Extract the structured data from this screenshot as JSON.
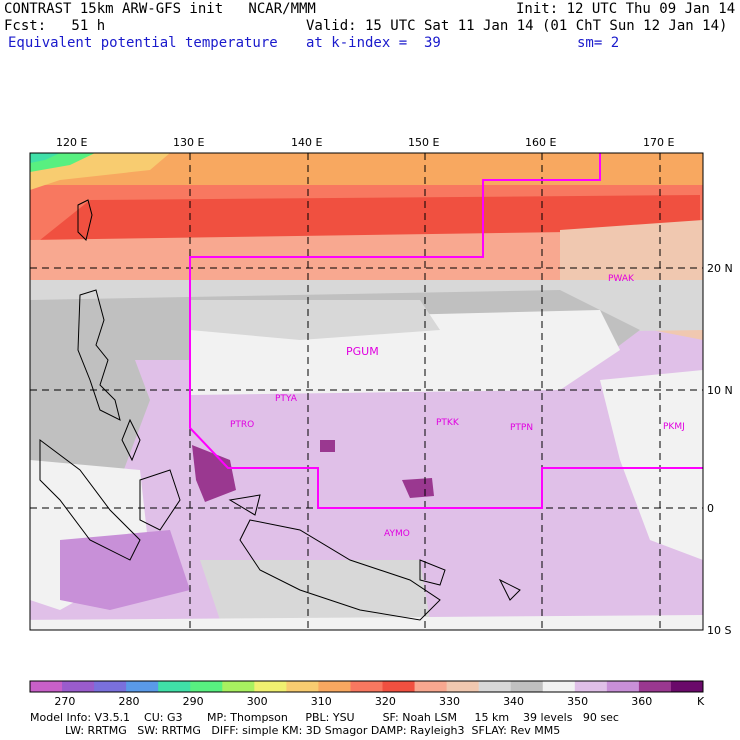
{
  "header": {
    "line1_left": "CONTRAST 15km ARW-GFS init   NCAR/MMM",
    "line1_right": "Init: 12 UTC Thu 09 Jan 14",
    "line2_left": "Fcst:   51 h",
    "line2_right": "Valid: 15 UTC Sat 11 Jan 14 (01 ChT Sun 12 Jan 14)",
    "line3_left": "Equivalent potential temperature",
    "line3_mid": "at k-index =  39",
    "line3_right": "sm= 2"
  },
  "lon_labels": [
    "120 E",
    "130 E",
    "140 E",
    "150 E",
    "160 E",
    "170 E"
  ],
  "lat_labels": [
    "20 N",
    "10 N",
    "0",
    "10 S"
  ],
  "stations": [
    "PWAK",
    "PGUM",
    "PTYA",
    "PTRO",
    "PTKK",
    "PTPN",
    "PKMJ",
    "AYMO"
  ],
  "colorbar": {
    "labels": [
      "270",
      "280",
      "290",
      "300",
      "310",
      "320",
      "330",
      "340",
      "350",
      "360"
    ],
    "unit": "K",
    "colors": [
      "#c860c8",
      "#9a5ccc",
      "#7a70dc",
      "#5a9ae8",
      "#40e0a8",
      "#58f080",
      "#a8f060",
      "#f0f070",
      "#f8cc70",
      "#f8a860",
      "#f87860",
      "#f05040",
      "#f8a890",
      "#f0c8b0",
      "#d8d8d8",
      "#c0c0c0",
      "#f2f2f2",
      "#e0c0e8",
      "#c890d8",
      "#9a3890",
      "#6a0a6a"
    ]
  },
  "footer": {
    "line1": "Model Info: V3.5.1    CU: G3       MP: Thompson     PBL: YSU        SF: Noah LSM     15 km    39 levels   90 sec",
    "line2": "          LW: RRTMG   SW: RRTMG   DIFF: simple KM: 3D Smagor DAMP: Rayleigh3  SFLAY: Rev MM5"
  }
}
